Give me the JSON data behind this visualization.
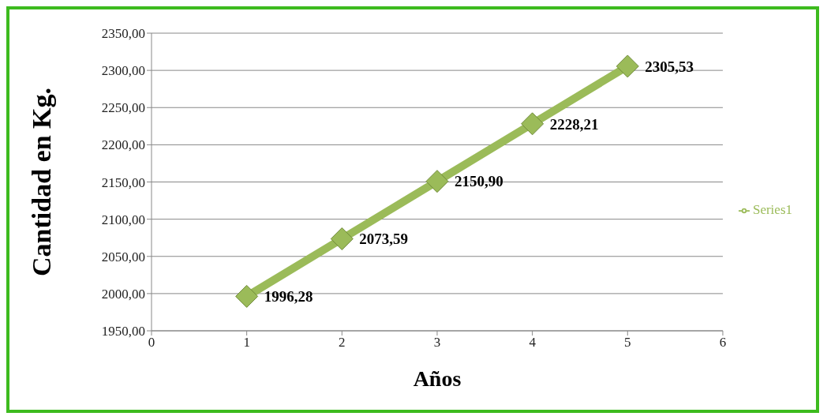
{
  "chart_data": {
    "type": "line",
    "xlabel": "Años",
    "ylabel": "Cantidad en Kg.",
    "x": [
      1,
      2,
      3,
      4,
      5
    ],
    "series": [
      {
        "name": "Series1",
        "color": "#9bbb59",
        "values": [
          1996.28,
          2073.59,
          2150.9,
          2228.21,
          2305.53
        ],
        "value_labels": [
          "1996,28",
          "2073,59",
          "2150,90",
          "2228,21",
          "2305,53"
        ]
      }
    ],
    "xlim": [
      0,
      6
    ],
    "xticks": [
      0,
      1,
      2,
      3,
      4,
      5,
      6
    ],
    "ylim": [
      1950,
      2350
    ],
    "yticks": [
      {
        "value": 1950,
        "label": "1950,00"
      },
      {
        "value": 2000,
        "label": "2000,00"
      },
      {
        "value": 2050,
        "label": "2050,00"
      },
      {
        "value": 2100,
        "label": "2100,00"
      },
      {
        "value": 2150,
        "label": "2150,00"
      },
      {
        "value": 2200,
        "label": "2200,00"
      },
      {
        "value": 2250,
        "label": "2250,00"
      },
      {
        "value": 2300,
        "label": "2300,00"
      },
      {
        "value": 2350,
        "label": "2350,00"
      }
    ],
    "grid": "y",
    "legend": "right",
    "marker": "diamond",
    "line_style": "solid"
  }
}
